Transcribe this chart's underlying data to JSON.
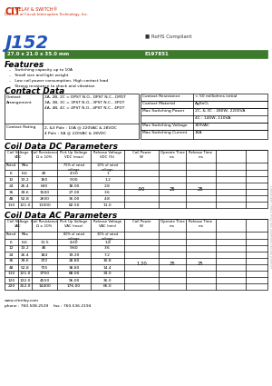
{
  "title": "J152",
  "dimensions": "27.0 x 21.0 x 35.0 mm",
  "part_number": "E197851",
  "features": [
    "Switching capacity up to 10A",
    "Small size and light weight",
    "Low coil power consumption, High contact load",
    "Strong resistance to shock and vibration"
  ],
  "contact_left_labels": [
    "Contact\nArrangement",
    "Contact Rating"
  ],
  "contact_left_data": [
    "2A, 2B, 2C = DPST N.O., DPST N.C., DPDT\n3A, 3B, 3C = 3PST N.O., 3PST N.C., 3PDT\n4A, 4B, 4C = 4PST N.O., 4PST N.C., 4PDT",
    "2, &3 Pole : 10A @ 220VAC & 28VDC\n4 Pole : 5A @ 220VAC & 28VDC"
  ],
  "contact_right": [
    [
      "Contact Resistance",
      "< 50 milliohms initial"
    ],
    [
      "Contact Material",
      "AgSnO₂"
    ],
    [
      "Max Switching Power",
      "2C, & 3C : 280W, 2200VA\n4C : 140W, 110VA"
    ],
    [
      "Max Switching Voltage",
      "300VAC"
    ],
    [
      "Max Switching Current",
      "10A"
    ]
  ],
  "dc_data": [
    [
      "6",
      "6.6",
      "40",
      "4.50",
      "1"
    ],
    [
      "12",
      "13.2",
      "160",
      "9.00",
      "1.2"
    ],
    [
      "24",
      "26.4",
      "640",
      "18.00",
      "2.8"
    ],
    [
      "36",
      "39.6",
      "1500",
      "27.00",
      "3.6"
    ],
    [
      "48",
      "52.8",
      "2600",
      "36.00",
      "4.8"
    ],
    [
      "110",
      "121.0",
      "11000",
      "82.50",
      "11.0"
    ]
  ],
  "dc_right": [
    ".90",
    "25",
    "25"
  ],
  "ac_data": [
    [
      "6",
      "6.6",
      "11.5",
      "4.60",
      "1.8"
    ],
    [
      "12",
      "13.2",
      "46",
      "9.60",
      "3.6"
    ],
    [
      "24",
      "26.4",
      "184",
      "19.20",
      "7.2"
    ],
    [
      "36",
      "39.6",
      "372",
      "28.80",
      "10.8"
    ],
    [
      "48",
      "52.8",
      "735",
      "38.80",
      "14.4"
    ],
    [
      "110",
      "121.0",
      "3750",
      "88.00",
      "33.0"
    ],
    [
      "120",
      "132.0",
      "4550",
      "96.00",
      "36.0"
    ],
    [
      "220",
      "252.0",
      "14400",
      "176.00",
      "66.0"
    ]
  ],
  "ac_right": [
    "1.20",
    "25",
    "25"
  ],
  "green_color": "#3d7a2e",
  "header_bg": "#f0f0f0",
  "footer_website": "www.citrelay.com",
  "footer_phone": "phone : 760.508.2539    fax : 760.536.2194"
}
